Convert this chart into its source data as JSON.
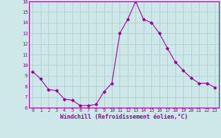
{
  "x": [
    0,
    1,
    2,
    3,
    4,
    5,
    6,
    7,
    8,
    9,
    10,
    11,
    12,
    13,
    14,
    15,
    16,
    17,
    18,
    19,
    20,
    21,
    22,
    23
  ],
  "y": [
    9.4,
    8.7,
    7.7,
    7.6,
    6.8,
    6.7,
    6.2,
    6.2,
    6.3,
    7.5,
    8.3,
    13.0,
    14.3,
    16.0,
    14.3,
    14.0,
    13.0,
    11.6,
    10.3,
    9.5,
    8.8,
    8.3,
    8.3,
    7.9
  ],
  "line_color": "#990099",
  "marker": "D",
  "marker_size": 2.5,
  "bg_color": "#cce8e8",
  "grid_color": "#b0cccc",
  "xlabel": "Windchill (Refroidissement éolien,°C)",
  "ylim": [
    6,
    16
  ],
  "xlim": [
    -0.5,
    23.5
  ],
  "yticks": [
    6,
    7,
    8,
    9,
    10,
    11,
    12,
    13,
    14,
    15,
    16
  ],
  "xticks": [
    0,
    1,
    2,
    3,
    4,
    5,
    6,
    7,
    8,
    9,
    10,
    11,
    12,
    13,
    14,
    15,
    16,
    17,
    18,
    19,
    20,
    21,
    22,
    23
  ],
  "tick_color": "#990099",
  "label_color": "#990099",
  "spine_color": "#990099",
  "font": "monospace",
  "tick_fontsize": 5,
  "xlabel_fontsize": 6
}
